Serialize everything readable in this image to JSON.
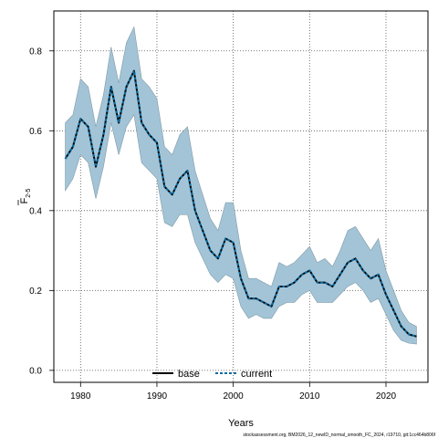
{
  "chart_data": {
    "type": "line",
    "title": "",
    "xlabel": "Years",
    "ylabel": "F2-5",
    "ylabel_main": "F",
    "ylabel_sub": "2-5",
    "xlim": [
      1976.5,
      2025.5
    ],
    "ylim": [
      -0.03,
      0.9
    ],
    "x_ticks": [
      1980,
      1990,
      2000,
      2010,
      2020
    ],
    "y_ticks": [
      0.0,
      0.2,
      0.4,
      0.6,
      0.8
    ],
    "x_tick_labels": [
      "1980",
      "1990",
      "2000",
      "2010",
      "2020"
    ],
    "y_tick_labels": [
      "0.0",
      "0.2",
      "0.4",
      "0.6",
      "0.8"
    ],
    "grid": true,
    "legend_position": "bottom-center",
    "x": [
      1978,
      1979,
      1980,
      1981,
      1982,
      1983,
      1984,
      1985,
      1986,
      1987,
      1988,
      1989,
      1990,
      1991,
      1992,
      1993,
      1994,
      1995,
      1996,
      1997,
      1998,
      1999,
      2000,
      2001,
      2002,
      2003,
      2004,
      2005,
      2006,
      2007,
      2008,
      2009,
      2010,
      2011,
      2012,
      2013,
      2014,
      2015,
      2016,
      2017,
      2018,
      2019,
      2020,
      2021,
      2022,
      2023,
      2024
    ],
    "series": [
      {
        "name": "base",
        "color": "#000000",
        "style": "solid",
        "values": [
          0.53,
          0.56,
          0.63,
          0.61,
          0.51,
          0.59,
          0.71,
          0.62,
          0.71,
          0.75,
          0.62,
          0.59,
          0.57,
          0.46,
          0.44,
          0.48,
          0.5,
          0.4,
          0.35,
          0.3,
          0.28,
          0.33,
          0.32,
          0.23,
          0.18,
          0.18,
          0.17,
          0.16,
          0.21,
          0.21,
          0.22,
          0.24,
          0.25,
          0.22,
          0.22,
          0.21,
          0.24,
          0.27,
          0.28,
          0.25,
          0.23,
          0.24,
          0.19,
          0.15,
          0.11,
          0.09,
          0.085
        ]
      },
      {
        "name": "current",
        "color": "#0a6aa0",
        "style": "dashed",
        "values": [
          0.53,
          0.56,
          0.63,
          0.61,
          0.51,
          0.59,
          0.71,
          0.62,
          0.71,
          0.75,
          0.62,
          0.59,
          0.57,
          0.46,
          0.44,
          0.48,
          0.5,
          0.4,
          0.35,
          0.3,
          0.28,
          0.33,
          0.32,
          0.23,
          0.18,
          0.18,
          0.17,
          0.16,
          0.21,
          0.21,
          0.22,
          0.24,
          0.25,
          0.22,
          0.22,
          0.21,
          0.24,
          0.27,
          0.28,
          0.25,
          0.23,
          0.24,
          0.19,
          0.15,
          0.11,
          0.09,
          0.085
        ]
      }
    ],
    "confidence_band": {
      "color": "#a3c4d6",
      "lower": [
        0.45,
        0.48,
        0.54,
        0.52,
        0.43,
        0.51,
        0.62,
        0.54,
        0.61,
        0.64,
        0.52,
        0.5,
        0.48,
        0.37,
        0.36,
        0.39,
        0.39,
        0.32,
        0.28,
        0.24,
        0.22,
        0.24,
        0.23,
        0.16,
        0.13,
        0.14,
        0.13,
        0.13,
        0.16,
        0.17,
        0.17,
        0.19,
        0.2,
        0.17,
        0.17,
        0.17,
        0.19,
        0.21,
        0.22,
        0.2,
        0.17,
        0.18,
        0.14,
        0.1,
        0.075,
        0.068,
        0.066
      ],
      "upper": [
        0.62,
        0.64,
        0.73,
        0.71,
        0.61,
        0.69,
        0.81,
        0.72,
        0.82,
        0.86,
        0.73,
        0.71,
        0.68,
        0.56,
        0.54,
        0.59,
        0.61,
        0.5,
        0.44,
        0.38,
        0.35,
        0.42,
        0.42,
        0.3,
        0.23,
        0.23,
        0.22,
        0.21,
        0.27,
        0.26,
        0.27,
        0.29,
        0.31,
        0.27,
        0.28,
        0.26,
        0.3,
        0.35,
        0.36,
        0.33,
        0.3,
        0.33,
        0.25,
        0.2,
        0.15,
        0.12,
        0.11
      ]
    }
  },
  "legend": {
    "base_label": "base",
    "current_label": "current"
  },
  "footer": {
    "text": "stockassessment.org, BM2026_12_newID_normal_smooth_FC_2024, r19710, git:1cc464b806f"
  }
}
